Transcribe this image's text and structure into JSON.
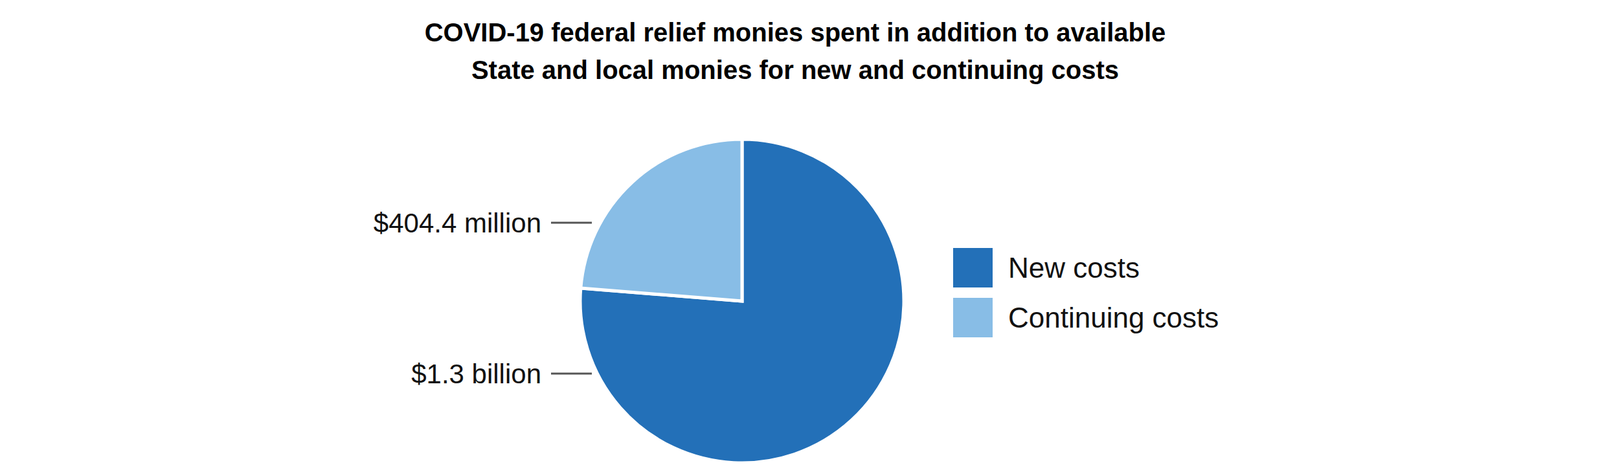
{
  "chart_data": {
    "type": "pie",
    "title": "COVID-19 federal relief monies spent in addition to available\nState and local monies for new and continuing costs",
    "categories": [
      "New costs",
      "Continuing costs"
    ],
    "values": [
      1300,
      404.4
    ],
    "value_labels": [
      "$1.3 billion",
      "$404.4 million"
    ],
    "colors": [
      "#2370b8",
      "#88bde6"
    ],
    "data_labels": true,
    "legend": "right"
  }
}
